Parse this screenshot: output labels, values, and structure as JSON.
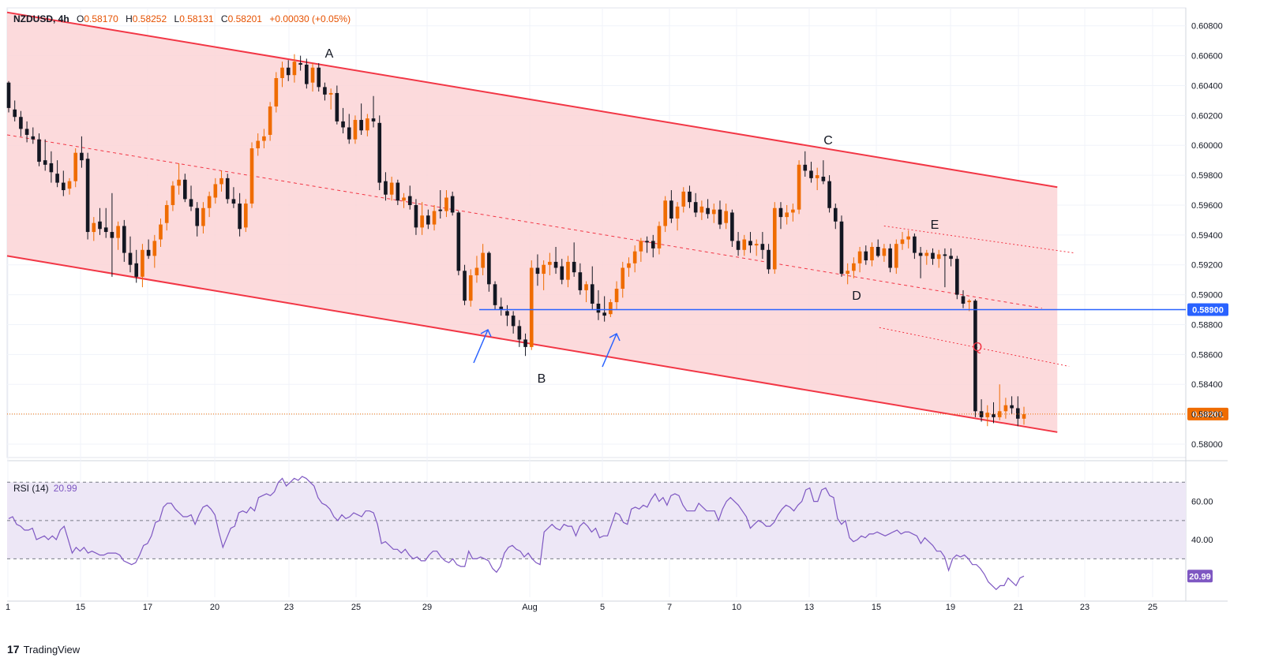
{
  "header": {
    "symbol": "NZDUSD, 4h",
    "open_label": "O",
    "open": "0.58170",
    "high_label": "H",
    "high": "0.58252",
    "low_label": "L",
    "low": "0.58131",
    "close_label": "C",
    "close": "0.58201",
    "change": "+0.00030 (+0.05%)"
  },
  "rsi": {
    "label": "RSI (14)",
    "value": "20.99",
    "badge": "20.99"
  },
  "footer": {
    "brand": "TradingView"
  },
  "colors": {
    "up": "#ef6c00",
    "down": "#131722",
    "channel_line": "#f23645",
    "channel_fill": "#fbd3d6",
    "support": "#2962ff",
    "rsi": "#7e57c2",
    "rsi_band": "#ede7f6"
  },
  "chart_data": {
    "type": "candlestick",
    "title": "NZDUSD, 4h",
    "price_axis": {
      "ticks": [
        "0.60800",
        "0.60600",
        "0.60400",
        "0.60200",
        "0.60000",
        "0.59800",
        "0.59600",
        "0.59400",
        "0.59200",
        "0.59000",
        "0.58800",
        "0.58600",
        "0.58400",
        "0.58200",
        "0.58000"
      ],
      "range": [
        0.5791,
        0.6092
      ]
    },
    "x_axis": {
      "ticks": [
        "1",
        "15",
        "17",
        "20",
        "23",
        "25",
        "29",
        "Aug",
        "5",
        "7",
        "10",
        "13",
        "15",
        "19",
        "21",
        "23",
        "25"
      ]
    },
    "labels": {
      "support_badge": "0.58900",
      "last_price_badge": "0.58201",
      "wave_labels": [
        "A",
        "B",
        "C",
        "D",
        "E",
        "Q"
      ]
    },
    "support_level": 0.589,
    "last_price": 0.58201,
    "series_candles": [
      [
        0.6042,
        0.6043,
        0.6022,
        0.6025
      ],
      [
        0.6024,
        0.603,
        0.6016,
        0.6019
      ],
      [
        0.6019,
        0.6023,
        0.6006,
        0.6011
      ],
      [
        0.6011,
        0.6016,
        0.6002,
        0.6007
      ],
      [
        0.6006,
        0.6012,
        0.6001,
        0.6004
      ],
      [
        0.6004,
        0.6008,
        0.5986,
        0.5989
      ],
      [
        0.599,
        0.6004,
        0.5983,
        0.5987
      ],
      [
        0.5988,
        0.5996,
        0.5975,
        0.5982
      ],
      [
        0.5981,
        0.599,
        0.5972,
        0.5975
      ],
      [
        0.5975,
        0.5983,
        0.5966,
        0.597
      ],
      [
        0.5971,
        0.5978,
        0.5967,
        0.5976
      ],
      [
        0.5976,
        0.5998,
        0.5972,
        0.5995
      ],
      [
        0.5995,
        0.6006,
        0.5985,
        0.599
      ],
      [
        0.5991,
        0.5995,
        0.5937,
        0.5942
      ],
      [
        0.5942,
        0.5952,
        0.5936,
        0.5948
      ],
      [
        0.5949,
        0.5958,
        0.594,
        0.5944
      ],
      [
        0.5945,
        0.5958,
        0.5938,
        0.5942
      ],
      [
        0.5942,
        0.5968,
        0.5912,
        0.5938
      ],
      [
        0.5938,
        0.5949,
        0.593,
        0.5946
      ],
      [
        0.5946,
        0.595,
        0.5922,
        0.5928
      ],
      [
        0.5928,
        0.5939,
        0.5915,
        0.592
      ],
      [
        0.5921,
        0.593,
        0.5908,
        0.5912
      ],
      [
        0.5912,
        0.5934,
        0.5905,
        0.593
      ],
      [
        0.593,
        0.5937,
        0.5924,
        0.5926
      ],
      [
        0.5926,
        0.594,
        0.5918,
        0.5936
      ],
      [
        0.5937,
        0.5951,
        0.5932,
        0.5947
      ],
      [
        0.5948,
        0.5963,
        0.5943,
        0.596
      ],
      [
        0.596,
        0.5976,
        0.5956,
        0.5973
      ],
      [
        0.5973,
        0.5988,
        0.5967,
        0.5977
      ],
      [
        0.5977,
        0.5981,
        0.5962,
        0.5964
      ],
      [
        0.5964,
        0.5973,
        0.5956,
        0.5959
      ],
      [
        0.5958,
        0.5962,
        0.5939,
        0.5946
      ],
      [
        0.5946,
        0.5962,
        0.5941,
        0.5958
      ],
      [
        0.5958,
        0.5969,
        0.5952,
        0.5966
      ],
      [
        0.5965,
        0.5978,
        0.5961,
        0.5974
      ],
      [
        0.5974,
        0.5983,
        0.5969,
        0.5978
      ],
      [
        0.5978,
        0.5981,
        0.5961,
        0.5964
      ],
      [
        0.5964,
        0.5972,
        0.5958,
        0.5961
      ],
      [
        0.5961,
        0.5968,
        0.5939,
        0.5944
      ],
      [
        0.5945,
        0.5964,
        0.5942,
        0.5961
      ],
      [
        0.5961,
        0.6002,
        0.5958,
        0.5998
      ],
      [
        0.5998,
        0.6008,
        0.5993,
        0.6003
      ],
      [
        0.6003,
        0.6011,
        0.5998,
        0.6006
      ],
      [
        0.6007,
        0.6029,
        0.6003,
        0.6026
      ],
      [
        0.6026,
        0.6049,
        0.6022,
        0.6045
      ],
      [
        0.6045,
        0.6056,
        0.6039,
        0.6052
      ],
      [
        0.6052,
        0.6057,
        0.6043,
        0.6047
      ],
      [
        0.6047,
        0.6061,
        0.6042,
        0.6056
      ],
      [
        0.6055,
        0.606,
        0.605,
        0.6054
      ],
      [
        0.6054,
        0.6058,
        0.6038,
        0.6041
      ],
      [
        0.6042,
        0.6055,
        0.6036,
        0.6052
      ],
      [
        0.6052,
        0.6055,
        0.6036,
        0.6039
      ],
      [
        0.6039,
        0.6042,
        0.603,
        0.6034
      ],
      [
        0.6034,
        0.6038,
        0.6024,
        0.6035
      ],
      [
        0.6035,
        0.604,
        0.6014,
        0.6016
      ],
      [
        0.6016,
        0.6025,
        0.6008,
        0.6012
      ],
      [
        0.6012,
        0.6021,
        0.6001,
        0.6004
      ],
      [
        0.6004,
        0.602,
        0.6001,
        0.6017
      ],
      [
        0.6017,
        0.6028,
        0.6007,
        0.601
      ],
      [
        0.601,
        0.6021,
        0.6006,
        0.6018
      ],
      [
        0.6018,
        0.6033,
        0.6012,
        0.6016
      ],
      [
        0.6015,
        0.602,
        0.597,
        0.5975
      ],
      [
        0.5976,
        0.5982,
        0.5963,
        0.5967
      ],
      [
        0.5967,
        0.5979,
        0.5963,
        0.5975
      ],
      [
        0.5975,
        0.5977,
        0.596,
        0.5963
      ],
      [
        0.5963,
        0.5968,
        0.5958,
        0.5965
      ],
      [
        0.5966,
        0.5973,
        0.5957,
        0.596
      ],
      [
        0.596,
        0.5964,
        0.594,
        0.5945
      ],
      [
        0.5945,
        0.5962,
        0.594,
        0.5953
      ],
      [
        0.5953,
        0.5957,
        0.5944,
        0.5947
      ],
      [
        0.5947,
        0.596,
        0.5943,
        0.5956
      ],
      [
        0.5957,
        0.597,
        0.5951,
        0.5956
      ],
      [
        0.5956,
        0.597,
        0.5952,
        0.5965
      ],
      [
        0.5966,
        0.5969,
        0.5953,
        0.5955
      ],
      [
        0.5955,
        0.5956,
        0.5913,
        0.5916
      ],
      [
        0.5916,
        0.592,
        0.5893,
        0.5896
      ],
      [
        0.5896,
        0.5917,
        0.5892,
        0.5913
      ],
      [
        0.5913,
        0.5926,
        0.5908,
        0.5918
      ],
      [
        0.5918,
        0.5934,
        0.5913,
        0.5928
      ],
      [
        0.5928,
        0.5929,
        0.5902,
        0.5907
      ],
      [
        0.5907,
        0.5909,
        0.589,
        0.5893
      ],
      [
        0.5892,
        0.5898,
        0.5886,
        0.589
      ],
      [
        0.5889,
        0.5893,
        0.5879,
        0.5886
      ],
      [
        0.5886,
        0.5889,
        0.5874,
        0.5879
      ],
      [
        0.5879,
        0.5883,
        0.5865,
        0.587
      ],
      [
        0.587,
        0.5874,
        0.5859,
        0.5865
      ],
      [
        0.5865,
        0.5923,
        0.5863,
        0.5918
      ],
      [
        0.5918,
        0.5927,
        0.5906,
        0.5914
      ],
      [
        0.5914,
        0.5923,
        0.5903,
        0.592
      ],
      [
        0.592,
        0.5928,
        0.5913,
        0.5922
      ],
      [
        0.5922,
        0.5932,
        0.5914,
        0.5918
      ],
      [
        0.5919,
        0.5924,
        0.5907,
        0.591
      ],
      [
        0.591,
        0.5926,
        0.5905,
        0.5922
      ],
      [
        0.5922,
        0.5935,
        0.5912,
        0.5915
      ],
      [
        0.5915,
        0.5921,
        0.59,
        0.5903
      ],
      [
        0.5903,
        0.5909,
        0.5895,
        0.5907
      ],
      [
        0.5907,
        0.5919,
        0.589,
        0.5894
      ],
      [
        0.5894,
        0.5903,
        0.5883,
        0.5888
      ],
      [
        0.5888,
        0.5899,
        0.5882,
        0.5886
      ],
      [
        0.5887,
        0.5897,
        0.5885,
        0.5895
      ],
      [
        0.5895,
        0.5909,
        0.589,
        0.5904
      ],
      [
        0.5904,
        0.5922,
        0.5898,
        0.5918
      ],
      [
        0.5918,
        0.5925,
        0.5912,
        0.5921
      ],
      [
        0.5921,
        0.5933,
        0.5915,
        0.5929
      ],
      [
        0.5929,
        0.5938,
        0.5922,
        0.5936
      ],
      [
        0.5936,
        0.5939,
        0.5928,
        0.5935
      ],
      [
        0.5936,
        0.594,
        0.5925,
        0.5931
      ],
      [
        0.5931,
        0.5949,
        0.5927,
        0.5946
      ],
      [
        0.5946,
        0.5966,
        0.5942,
        0.5963
      ],
      [
        0.5963,
        0.597,
        0.5948,
        0.5951
      ],
      [
        0.5951,
        0.5962,
        0.5943,
        0.5959
      ],
      [
        0.5959,
        0.5972,
        0.5955,
        0.5969
      ],
      [
        0.5969,
        0.5973,
        0.5958,
        0.5962
      ],
      [
        0.5962,
        0.5968,
        0.5952,
        0.5955
      ],
      [
        0.5955,
        0.5963,
        0.595,
        0.5959
      ],
      [
        0.5958,
        0.5964,
        0.5951,
        0.5954
      ],
      [
        0.5954,
        0.5961,
        0.5948,
        0.5957
      ],
      [
        0.5957,
        0.5963,
        0.5944,
        0.5947
      ],
      [
        0.5948,
        0.5961,
        0.5944,
        0.5956
      ],
      [
        0.5955,
        0.5957,
        0.5932,
        0.5936
      ],
      [
        0.5936,
        0.5942,
        0.5926,
        0.593
      ],
      [
        0.593,
        0.594,
        0.5926,
        0.5937
      ],
      [
        0.5936,
        0.5942,
        0.5928,
        0.5933
      ],
      [
        0.5933,
        0.5937,
        0.5926,
        0.5934
      ],
      [
        0.5934,
        0.5942,
        0.5924,
        0.593
      ],
      [
        0.593,
        0.5934,
        0.5914,
        0.5917
      ],
      [
        0.5917,
        0.5962,
        0.5914,
        0.5958
      ],
      [
        0.5958,
        0.5962,
        0.5944,
        0.5952
      ],
      [
        0.5952,
        0.596,
        0.5947,
        0.5955
      ],
      [
        0.5955,
        0.5961,
        0.5949,
        0.5957
      ],
      [
        0.5957,
        0.599,
        0.5954,
        0.5987
      ],
      [
        0.5987,
        0.5996,
        0.5979,
        0.5983
      ],
      [
        0.5983,
        0.5989,
        0.5975,
        0.5978
      ],
      [
        0.5978,
        0.5985,
        0.597,
        0.598
      ],
      [
        0.5979,
        0.599,
        0.5974,
        0.5976
      ],
      [
        0.5976,
        0.598,
        0.5955,
        0.5958
      ],
      [
        0.5958,
        0.5961,
        0.5944,
        0.5949
      ],
      [
        0.5949,
        0.5953,
        0.5912,
        0.5914
      ],
      [
        0.5914,
        0.5921,
        0.5907,
        0.5916
      ],
      [
        0.5916,
        0.5925,
        0.5911,
        0.5921
      ],
      [
        0.5921,
        0.5932,
        0.5915,
        0.5929
      ],
      [
        0.5929,
        0.5933,
        0.592,
        0.5923
      ],
      [
        0.5923,
        0.5935,
        0.5919,
        0.5932
      ],
      [
        0.5932,
        0.5937,
        0.5925,
        0.5926
      ],
      [
        0.5926,
        0.5934,
        0.5922,
        0.5931
      ],
      [
        0.5931,
        0.5934,
        0.5915,
        0.5918
      ],
      [
        0.5918,
        0.5937,
        0.5914,
        0.5934
      ],
      [
        0.5934,
        0.5942,
        0.593,
        0.5937
      ],
      [
        0.5937,
        0.5943,
        0.5931,
        0.5939
      ],
      [
        0.5939,
        0.5941,
        0.5924,
        0.5928
      ],
      [
        0.5928,
        0.5932,
        0.5911,
        0.5926
      ],
      [
        0.5926,
        0.593,
        0.592,
        0.5928
      ],
      [
        0.5928,
        0.5931,
        0.592,
        0.5924
      ],
      [
        0.5924,
        0.593,
        0.5918,
        0.5927
      ],
      [
        0.5927,
        0.5931,
        0.5905,
        0.5926
      ],
      [
        0.5926,
        0.5931,
        0.5919,
        0.5924
      ],
      [
        0.5924,
        0.5926,
        0.5897,
        0.59
      ],
      [
        0.5899,
        0.5903,
        0.5891,
        0.5894
      ],
      [
        0.5895,
        0.5897,
        0.5889,
        0.5896
      ],
      [
        0.5896,
        0.5897,
        0.5818,
        0.5822
      ],
      [
        0.5822,
        0.583,
        0.5815,
        0.5818
      ],
      [
        0.5818,
        0.5826,
        0.5812,
        0.5821
      ],
      [
        0.582,
        0.5828,
        0.5814,
        0.5818
      ],
      [
        0.5818,
        0.584,
        0.5816,
        0.5822
      ],
      [
        0.5822,
        0.5831,
        0.5817,
        0.5826
      ],
      [
        0.5826,
        0.5832,
        0.582,
        0.5824
      ],
      [
        0.5824,
        0.5832,
        0.5812,
        0.5817
      ],
      [
        0.5817,
        0.5825,
        0.5813,
        0.582
      ]
    ],
    "channel": {
      "upper": [
        [
          0,
          0.6089
        ],
        [
          0.891,
          0.5972
        ]
      ],
      "lower": [
        [
          0,
          0.5926
        ],
        [
          0.891,
          0.5808
        ]
      ],
      "mid": [
        [
          0,
          0.6007
        ],
        [
          0.878,
          0.5891
        ]
      ],
      "inner_upper": [
        [
          0.744,
          0.5946
        ],
        [
          0.905,
          0.5928
        ]
      ],
      "inner_lower": [
        [
          0.74,
          0.5878
        ],
        [
          0.901,
          0.5852
        ]
      ]
    },
    "rsi_series": {
      "name": "RSI (14)",
      "range": [
        10,
        80
      ],
      "overbought": 70,
      "oversold": 30,
      "midline": 50,
      "ticks": [
        "60.00",
        "40.00",
        "20.99"
      ],
      "values": [
        51,
        52,
        48,
        47,
        45,
        45,
        46,
        40,
        41,
        42,
        40,
        42,
        40,
        45,
        47,
        40,
        33,
        36,
        34,
        36,
        33,
        34,
        33,
        32,
        32,
        33,
        33,
        33,
        32,
        29,
        28,
        27,
        28,
        32,
        37,
        38,
        42,
        49,
        50,
        57,
        59,
        59,
        56,
        54,
        52,
        52,
        53,
        48,
        53,
        57,
        58,
        56,
        53,
        44,
        36,
        41,
        46,
        47,
        54,
        55,
        54,
        57,
        55,
        62,
        63,
        64,
        63,
        65,
        70,
        72,
        68,
        70,
        72,
        71,
        73,
        72,
        70,
        68,
        62,
        59,
        58,
        56,
        52,
        50,
        53,
        51,
        52,
        54,
        53,
        52,
        55,
        55,
        54,
        48,
        38,
        39,
        37,
        35,
        35,
        33,
        35,
        32,
        30,
        31,
        29,
        29,
        32,
        34,
        34,
        31,
        29,
        28,
        30,
        27,
        26,
        26,
        34,
        30,
        30,
        31,
        30,
        29,
        25,
        23,
        26,
        33,
        36,
        37,
        35,
        34,
        31,
        33,
        30,
        28,
        27,
        44,
        46,
        48,
        46,
        45,
        48,
        47,
        47,
        42,
        47,
        49,
        47,
        44,
        46,
        41,
        42,
        42,
        48,
        54,
        53,
        49,
        48,
        56,
        57,
        56,
        58,
        57,
        61,
        64,
        60,
        62,
        58,
        63,
        64,
        63,
        58,
        55,
        55,
        55,
        59,
        57,
        55,
        55,
        55,
        50,
        56,
        60,
        62,
        60,
        58,
        55,
        52,
        46,
        48,
        50,
        49,
        47,
        47,
        49,
        53,
        56,
        58,
        57,
        55,
        58,
        60,
        66,
        67,
        60,
        60,
        66,
        67,
        63,
        62,
        51,
        48,
        50,
        41,
        39,
        40,
        42,
        41,
        43,
        43,
        44,
        43,
        42,
        43,
        44,
        45,
        43,
        44,
        44,
        43,
        42,
        38,
        41,
        39,
        37,
        34,
        34,
        31,
        24,
        30,
        32,
        31,
        32,
        30,
        27,
        27,
        25,
        22,
        18,
        16,
        14,
        16,
        16,
        20,
        18,
        16,
        20,
        21
      ]
    }
  }
}
